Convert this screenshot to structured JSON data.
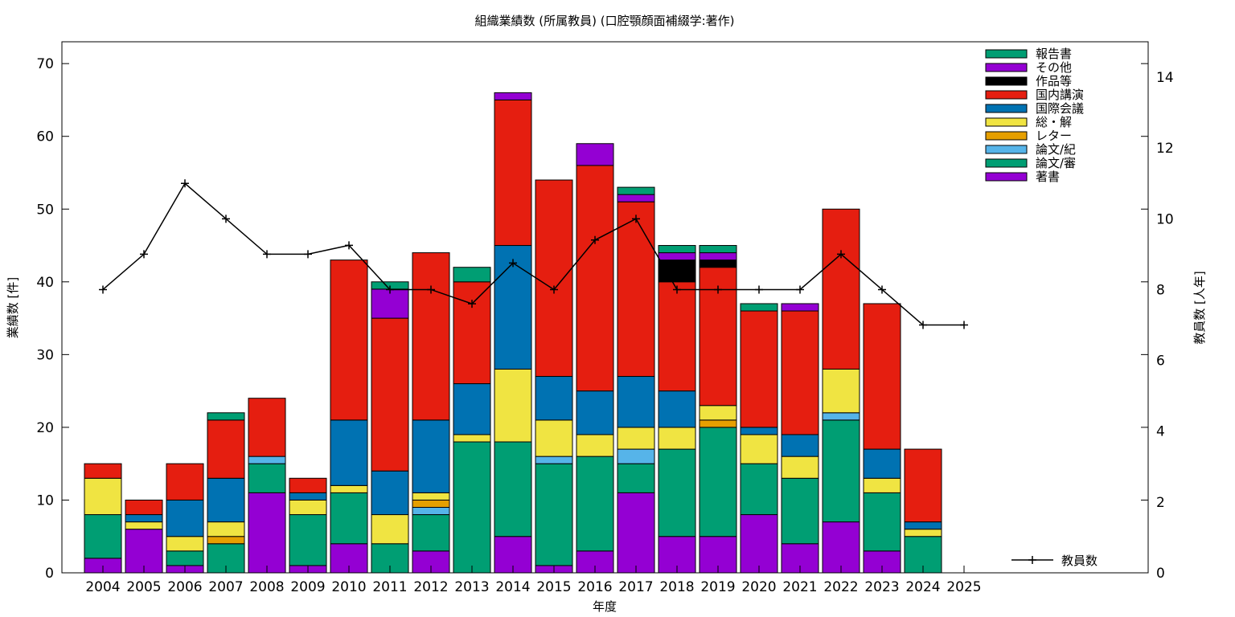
{
  "chart_data": {
    "type": "bar",
    "stacked": true,
    "title": "組織業績数 (所属教員) (口腔顎顔面補綴学:著作)",
    "xlabel": "年度",
    "ylabel": "業績数 [件]",
    "y2label": "教員数 [人年]",
    "categories": [
      "2004",
      "2005",
      "2006",
      "2007",
      "2008",
      "2009",
      "2010",
      "2011",
      "2012",
      "2013",
      "2014",
      "2015",
      "2016",
      "2017",
      "2018",
      "2019",
      "2020",
      "2021",
      "2022",
      "2023",
      "2024",
      "2025"
    ],
    "ylim": [
      0,
      73
    ],
    "y2lim": [
      0,
      15
    ],
    "yticks": [
      0,
      10,
      20,
      30,
      40,
      50,
      60,
      70
    ],
    "y2ticks": [
      0,
      2,
      4,
      6,
      8,
      10,
      12,
      14
    ],
    "grid": false,
    "legend_position": "top-right",
    "series": [
      {
        "name": "著書",
        "color": "#9400d3",
        "values": [
          2,
          6,
          1,
          0,
          11,
          1,
          4,
          0,
          3,
          0,
          5,
          1,
          3,
          11,
          5,
          5,
          8,
          4,
          7,
          3,
          0,
          0
        ]
      },
      {
        "name": "論文/審",
        "color": "#009e73",
        "values": [
          6,
          0,
          2,
          4,
          4,
          7,
          7,
          4,
          5,
          18,
          13,
          14,
          13,
          4,
          12,
          15,
          7,
          9,
          14,
          8,
          5,
          0
        ]
      },
      {
        "name": "論文/紀",
        "color": "#56b4e9",
        "values": [
          0,
          0,
          0,
          0,
          1,
          0,
          0,
          0,
          1,
          0,
          0,
          1,
          0,
          2,
          0,
          0,
          0,
          0,
          1,
          0,
          0,
          0
        ]
      },
      {
        "name": "レター",
        "color": "#e69f00",
        "values": [
          0,
          0,
          0,
          1,
          0,
          0,
          0,
          0,
          1,
          0,
          0,
          0,
          0,
          0,
          0,
          1,
          0,
          0,
          0,
          0,
          0,
          0
        ]
      },
      {
        "name": "総・解",
        "color": "#f0e442",
        "values": [
          5,
          1,
          2,
          2,
          0,
          2,
          1,
          4,
          1,
          1,
          10,
          5,
          3,
          3,
          3,
          2,
          4,
          3,
          6,
          2,
          1,
          0
        ]
      },
      {
        "name": "国際会議",
        "color": "#0072b2",
        "values": [
          0,
          1,
          5,
          6,
          0,
          1,
          9,
          6,
          10,
          7,
          17,
          6,
          6,
          7,
          5,
          0,
          1,
          3,
          0,
          4,
          1,
          0
        ]
      },
      {
        "name": "国内講演",
        "color": "#e51e10",
        "values": [
          2,
          2,
          5,
          8,
          8,
          2,
          22,
          21,
          23,
          14,
          20,
          27,
          31,
          24,
          15,
          19,
          16,
          17,
          22,
          20,
          10,
          0
        ]
      },
      {
        "name": "作品等",
        "color": "#000000",
        "values": [
          0,
          0,
          0,
          0,
          0,
          0,
          0,
          0,
          0,
          0,
          0,
          0,
          0,
          0,
          3,
          1,
          0,
          0,
          0,
          0,
          0,
          0
        ]
      },
      {
        "name": "その他",
        "color": "#9400d3",
        "values": [
          0,
          0,
          0,
          0,
          0,
          0,
          0,
          4,
          0,
          0,
          1,
          0,
          3,
          1,
          1,
          1,
          0,
          1,
          0,
          0,
          0,
          0
        ]
      },
      {
        "name": "報告書",
        "color": "#009e73",
        "values": [
          0,
          0,
          0,
          1,
          0,
          0,
          0,
          1,
          0,
          2,
          0,
          0,
          0,
          1,
          1,
          1,
          1,
          0,
          0,
          0,
          0,
          0
        ]
      }
    ],
    "line_series": {
      "name": "教員数",
      "axis": "y2",
      "color": "#000000",
      "values": [
        8,
        9,
        11,
        10,
        9,
        9,
        9.25,
        8,
        8,
        7.6,
        8.75,
        8,
        9.4,
        10,
        8,
        8,
        8,
        8,
        9,
        8,
        7,
        7
      ]
    }
  }
}
